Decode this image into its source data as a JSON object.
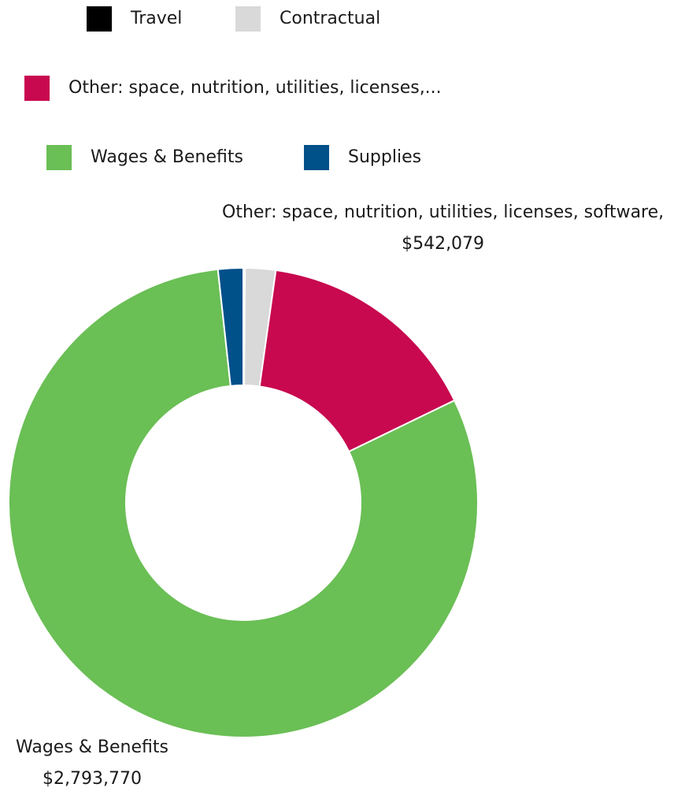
{
  "chart_data": {
    "type": "pie",
    "style": "donut",
    "categories": [
      "Travel",
      "Contractual",
      "Other: space, nutrition, utilities, licenses, software,",
      "Wages & Benefits",
      "Supplies"
    ],
    "values": [
      4000,
      73000,
      542079,
      2793770,
      60000
    ],
    "colors": [
      "#000000",
      "#d9d9d9",
      "#c8084f",
      "#6abf55",
      "#00508a"
    ],
    "legend": {
      "placement": "top",
      "items": [
        {
          "label": "Travel",
          "color": "#000000"
        },
        {
          "label": "Contractual",
          "color": "#d9d9d9"
        },
        {
          "label": "Other: space, nutrition, utilities, licenses,...",
          "color": "#c8084f"
        },
        {
          "label": "Wages & Benefits",
          "color": "#6abf55"
        },
        {
          "label": "Supplies",
          "color": "#00508a"
        }
      ]
    },
    "data_labels": [
      {
        "name": "Other: space, nutrition, utilities, licenses, software,",
        "value": "$542,079"
      },
      {
        "name": "Wages & Benefits",
        "value": "$2,793,770"
      }
    ]
  }
}
